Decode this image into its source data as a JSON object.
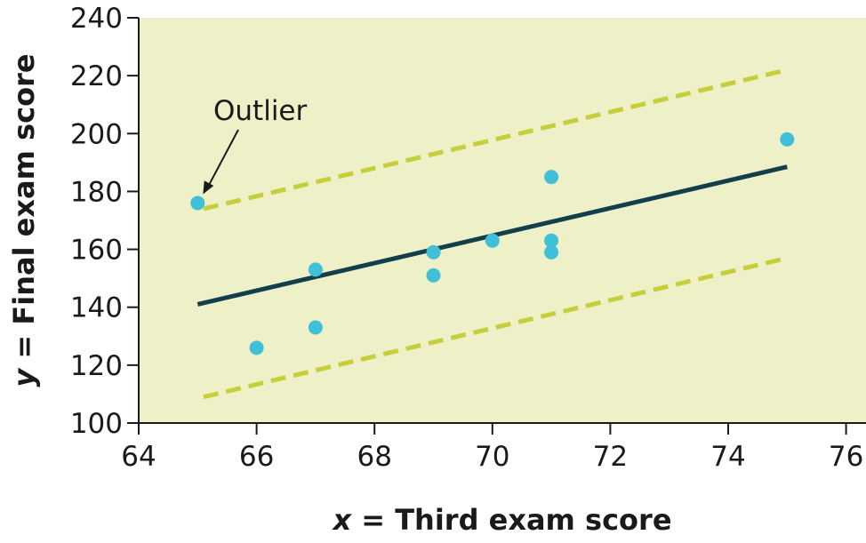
{
  "chart_data": {
    "type": "scatter",
    "xlabel_var": "x",
    "xlabel_text": " = Third exam score",
    "ylabel_var": "y",
    "ylabel_text": " = Final exam score",
    "xlim": [
      64,
      76
    ],
    "ylim": [
      100,
      240
    ],
    "xticks": [
      64,
      66,
      68,
      70,
      72,
      74,
      76
    ],
    "yticks": [
      100,
      120,
      140,
      160,
      180,
      200,
      220,
      240
    ],
    "points": [
      {
        "x": 65,
        "y": 176
      },
      {
        "x": 66,
        "y": 126
      },
      {
        "x": 67,
        "y": 153
      },
      {
        "x": 67,
        "y": 133
      },
      {
        "x": 69,
        "y": 159
      },
      {
        "x": 69,
        "y": 151
      },
      {
        "x": 70,
        "y": 163
      },
      {
        "x": 71,
        "y": 185
      },
      {
        "x": 71,
        "y": 163
      },
      {
        "x": 71,
        "y": 159
      },
      {
        "x": 75,
        "y": 198
      }
    ],
    "regression_line": {
      "x": [
        65,
        75
      ],
      "y": [
        141,
        188.5
      ]
    },
    "upper_bound_line": {
      "x": [
        65.1,
        75
      ],
      "y": [
        174,
        222
      ]
    },
    "lower_bound_line": {
      "x": [
        65.1,
        75
      ],
      "y": [
        109,
        157
      ]
    },
    "annotation": {
      "text": "Outlier",
      "x": 65,
      "y": 176
    },
    "colors": {
      "plot_background": "#eef0c8",
      "points": "#3fbfd8",
      "regression": "#123f4a",
      "bounds": "#c6cf3b",
      "axis": "#1a1a1a"
    },
    "grid": false
  }
}
